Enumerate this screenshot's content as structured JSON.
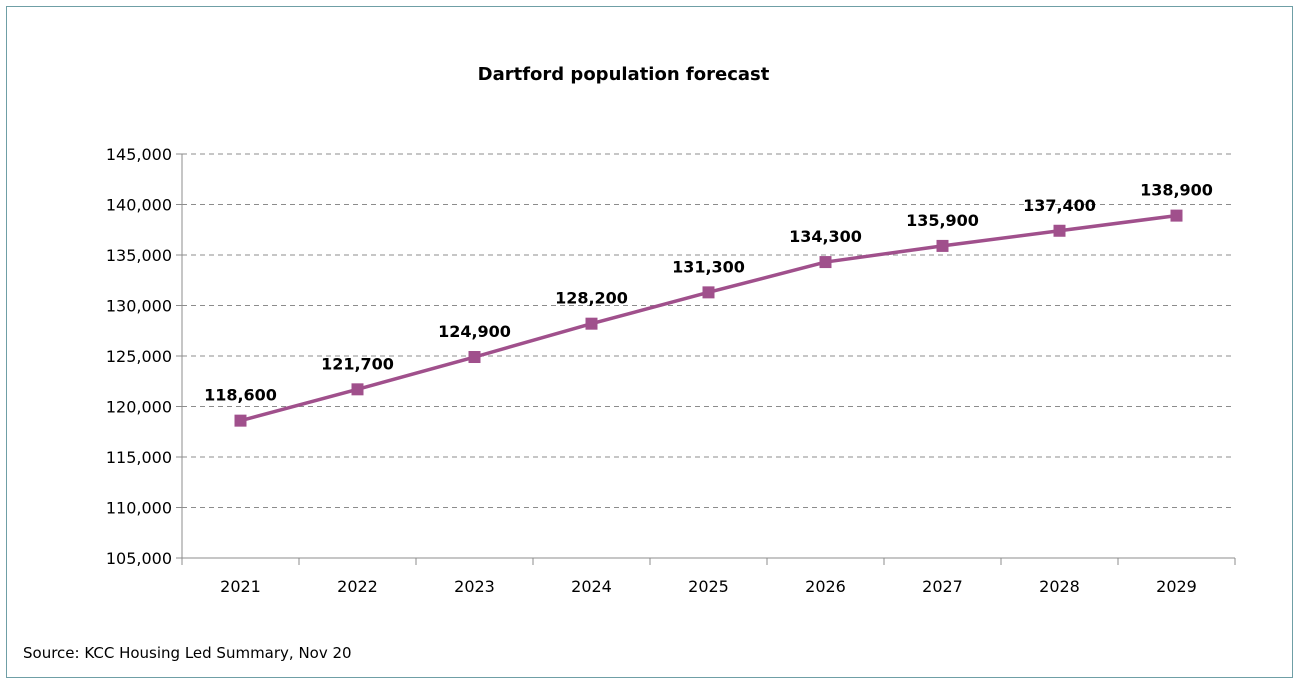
{
  "chart_data": {
    "type": "line",
    "title": "Dartford population forecast",
    "xlabel": "",
    "ylabel": "",
    "categories": [
      "2021",
      "2022",
      "2023",
      "2024",
      "2025",
      "2026",
      "2027",
      "2028",
      "2029"
    ],
    "series": [
      {
        "values": [
          118600,
          121700,
          124900,
          128200,
          131300,
          134300,
          135900,
          137400,
          138900
        ],
        "data_labels": [
          "118,600",
          "121,700",
          "124,900",
          "128,200",
          "131,300",
          "134,300",
          "135,900",
          "137,400",
          "138,900"
        ],
        "color": "#a0508c",
        "marker": "square"
      }
    ],
    "ylim": [
      105000,
      145000
    ],
    "yticks": [
      105000,
      110000,
      115000,
      120000,
      125000,
      130000,
      135000,
      140000,
      145000
    ],
    "ytick_labels": [
      "105,000",
      "110,000",
      "115,000",
      "120,000",
      "125,000",
      "130,000",
      "135,000",
      "140,000",
      "145,000"
    ],
    "grid": true,
    "legend": "none"
  },
  "source": "Source: KCC Housing Led Summary, Nov 20"
}
